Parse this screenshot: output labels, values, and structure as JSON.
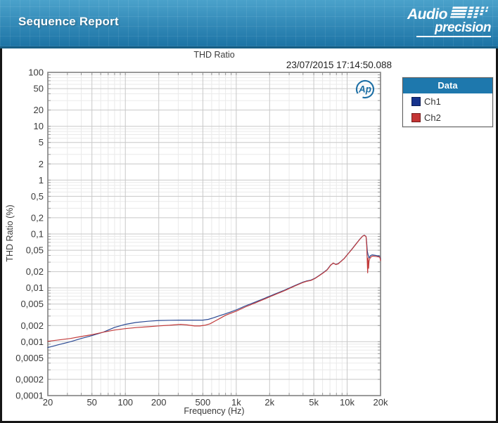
{
  "header": {
    "title": "Sequence Report",
    "logo_line1": "Audio",
    "logo_line2": "precision",
    "bg_top": "#4ba2cb",
    "bg_bottom": "#1c73a5"
  },
  "report": {
    "chart_title": "THD Ratio",
    "timestamp": "23/07/2015 17:14:50.088",
    "ap_badge": "Ap",
    "ap_badge_color": "#1d6fa5"
  },
  "legend": {
    "title": "Data",
    "header_color": "#1e78ad",
    "items": [
      {
        "label": "Ch1",
        "color": "#17338c"
      },
      {
        "label": "Ch2",
        "color": "#c43434"
      }
    ]
  },
  "chart_data": {
    "type": "line",
    "title": "THD Ratio",
    "xlabel": "Frequency (Hz)",
    "ylabel": "THD Ratio (%)",
    "x_scale": "log",
    "y_scale": "log",
    "x_range": [
      20,
      20000
    ],
    "y_range": [
      0.0001,
      100
    ],
    "grid": {
      "major_color": "#c8c8c8",
      "minor_color": "#eaeaea",
      "frame_color": "#808080",
      "tick_color": "#999999",
      "label_color": "#3a3a3a"
    },
    "x_ticks": [
      {
        "v": 20,
        "label": "20"
      },
      {
        "v": 50,
        "label": "50"
      },
      {
        "v": 100,
        "label": "100"
      },
      {
        "v": 200,
        "label": "200"
      },
      {
        "v": 500,
        "label": "500"
      },
      {
        "v": 1000,
        "label": "1k"
      },
      {
        "v": 2000,
        "label": "2k"
      },
      {
        "v": 5000,
        "label": "5k"
      },
      {
        "v": 10000,
        "label": "10k"
      },
      {
        "v": 20000,
        "label": "20k"
      }
    ],
    "y_ticks": [
      {
        "v": 100,
        "label": "100"
      },
      {
        "v": 50,
        "label": "50"
      },
      {
        "v": 20,
        "label": "20"
      },
      {
        "v": 10,
        "label": "10"
      },
      {
        "v": 5,
        "label": "5"
      },
      {
        "v": 2,
        "label": "2"
      },
      {
        "v": 1,
        "label": "1"
      },
      {
        "v": 0.5,
        "label": "0,5"
      },
      {
        "v": 0.2,
        "label": "0,2"
      },
      {
        "v": 0.1,
        "label": "0,1"
      },
      {
        "v": 0.05,
        "label": "0,05"
      },
      {
        "v": 0.02,
        "label": "0,02"
      },
      {
        "v": 0.01,
        "label": "0,01"
      },
      {
        "v": 0.005,
        "label": "0,005"
      },
      {
        "v": 0.002,
        "label": "0,002"
      },
      {
        "v": 0.001,
        "label": "0,001"
      },
      {
        "v": 0.0005,
        "label": "0,0005"
      },
      {
        "v": 0.0002,
        "label": "0,0002"
      },
      {
        "v": 0.0001,
        "label": "0,0001"
      }
    ],
    "series": [
      {
        "name": "Ch1",
        "color": "#2b4a94",
        "points": [
          [
            20,
            0.00078
          ],
          [
            25,
            0.00088
          ],
          [
            32,
            0.001
          ],
          [
            40,
            0.00115
          ],
          [
            50,
            0.0013
          ],
          [
            63,
            0.0015
          ],
          [
            80,
            0.00185
          ],
          [
            100,
            0.0021
          ],
          [
            125,
            0.00228
          ],
          [
            160,
            0.0024
          ],
          [
            200,
            0.00248
          ],
          [
            250,
            0.0025
          ],
          [
            315,
            0.00252
          ],
          [
            400,
            0.00252
          ],
          [
            500,
            0.00252
          ],
          [
            560,
            0.0026
          ],
          [
            630,
            0.0028
          ],
          [
            710,
            0.00305
          ],
          [
            800,
            0.0033
          ],
          [
            900,
            0.0036
          ],
          [
            1000,
            0.0039
          ],
          [
            1200,
            0.0046
          ],
          [
            1500,
            0.0055
          ],
          [
            1800,
            0.0064
          ],
          [
            2200,
            0.0076
          ],
          [
            2700,
            0.009
          ],
          [
            3300,
            0.0108
          ],
          [
            4000,
            0.0128
          ],
          [
            4300,
            0.0134
          ],
          [
            4700,
            0.0139
          ],
          [
            5100,
            0.015
          ],
          [
            5600,
            0.017
          ],
          [
            6100,
            0.0192
          ],
          [
            6600,
            0.0218
          ],
          [
            7100,
            0.0266
          ],
          [
            7500,
            0.0286
          ],
          [
            7900,
            0.0274
          ],
          [
            8300,
            0.0282
          ],
          [
            8800,
            0.0312
          ],
          [
            9400,
            0.0352
          ],
          [
            10000,
            0.041
          ],
          [
            11000,
            0.052
          ],
          [
            12000,
            0.065
          ],
          [
            13000,
            0.08
          ],
          [
            13800,
            0.0915
          ],
          [
            14300,
            0.095
          ],
          [
            14800,
            0.09
          ],
          [
            15000,
            0.07
          ],
          [
            15200,
            0.048
          ],
          [
            15500,
            0.04
          ],
          [
            15800,
            0.036
          ],
          [
            16200,
            0.0395
          ],
          [
            16800,
            0.041
          ],
          [
            17500,
            0.0405
          ],
          [
            18500,
            0.0398
          ],
          [
            19200,
            0.039
          ],
          [
            19700,
            0.038
          ],
          [
            20000,
            0.034
          ]
        ]
      },
      {
        "name": "Ch2",
        "color": "#c23b3b",
        "points": [
          [
            20,
            0.00102
          ],
          [
            25,
            0.00108
          ],
          [
            32,
            0.00115
          ],
          [
            40,
            0.00125
          ],
          [
            50,
            0.00135
          ],
          [
            63,
            0.0015
          ],
          [
            80,
            0.00165
          ],
          [
            100,
            0.00175
          ],
          [
            125,
            0.00183
          ],
          [
            160,
            0.0019
          ],
          [
            200,
            0.00197
          ],
          [
            250,
            0.00202
          ],
          [
            315,
            0.0021
          ],
          [
            360,
            0.00205
          ],
          [
            420,
            0.00196
          ],
          [
            470,
            0.00196
          ],
          [
            520,
            0.00202
          ],
          [
            580,
            0.00215
          ],
          [
            650,
            0.00245
          ],
          [
            710,
            0.0027
          ],
          [
            800,
            0.0031
          ],
          [
            900,
            0.0034
          ],
          [
            1000,
            0.0037
          ],
          [
            1200,
            0.0044
          ],
          [
            1500,
            0.0053
          ],
          [
            1800,
            0.0062
          ],
          [
            2200,
            0.0074
          ],
          [
            2700,
            0.0088
          ],
          [
            3300,
            0.0106
          ],
          [
            4000,
            0.0126
          ],
          [
            4300,
            0.0132
          ],
          [
            4700,
            0.0137
          ],
          [
            5100,
            0.0148
          ],
          [
            5600,
            0.0168
          ],
          [
            6100,
            0.019
          ],
          [
            6600,
            0.0215
          ],
          [
            7100,
            0.0263
          ],
          [
            7500,
            0.029
          ],
          [
            7900,
            0.0271
          ],
          [
            8300,
            0.0279
          ],
          [
            8800,
            0.0309
          ],
          [
            9400,
            0.0349
          ],
          [
            10000,
            0.0407
          ],
          [
            11000,
            0.0515
          ],
          [
            12000,
            0.0645
          ],
          [
            13000,
            0.0795
          ],
          [
            13800,
            0.091
          ],
          [
            14300,
            0.0945
          ],
          [
            14800,
            0.0893
          ],
          [
            15000,
            0.062
          ],
          [
            15150,
            0.035
          ],
          [
            15300,
            0.019
          ],
          [
            15450,
            0.036
          ],
          [
            15600,
            0.023
          ],
          [
            15750,
            0.031
          ],
          [
            16000,
            0.035
          ],
          [
            16500,
            0.0378
          ],
          [
            17000,
            0.039
          ],
          [
            17800,
            0.0385
          ],
          [
            18500,
            0.038
          ],
          [
            19200,
            0.0376
          ],
          [
            19700,
            0.037
          ],
          [
            20000,
            0.032
          ]
        ]
      }
    ],
    "legend_position": "right"
  }
}
